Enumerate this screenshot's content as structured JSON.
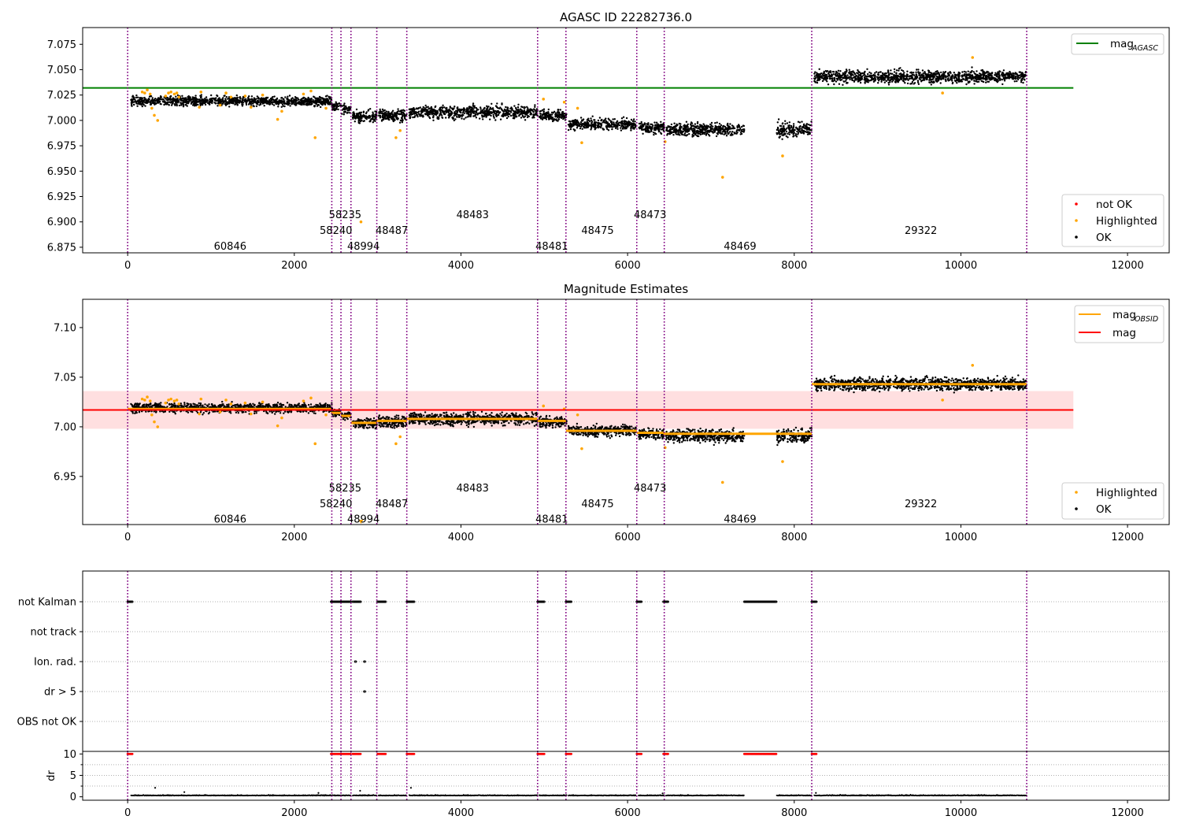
{
  "chart_data": [
    {
      "type": "scatter",
      "title": "AGASC ID 22282736.0",
      "xlim": [
        -540,
        12500
      ],
      "ylim": [
        6.8695,
        7.0915
      ],
      "x_ticks": [
        0,
        2000,
        4000,
        6000,
        8000,
        10000,
        12000
      ],
      "x_tick_labels": [
        "0",
        "2000",
        "4000",
        "6000",
        "8000",
        "10000",
        "12000"
      ],
      "y_ticks": [
        6.875,
        6.9,
        6.925,
        6.95,
        6.975,
        7.0,
        7.025,
        7.05,
        7.075
      ],
      "y_tick_labels": [
        "6.875",
        "6.900",
        "6.925",
        "6.950",
        "6.975",
        "7.000",
        "7.025",
        "7.050",
        "7.075"
      ],
      "reference_lines": [
        {
          "name": "mag_AGASC",
          "value": 7.032,
          "x_range": [
            -540,
            11350
          ],
          "color": "#008000"
        }
      ],
      "legends": [
        {
          "position": "upper right",
          "entries": [
            {
              "label": "mag",
              "subscript": "AGASC",
              "marker": "line",
              "color": "#008000"
            }
          ]
        },
        {
          "position": "lower right",
          "entries": [
            {
              "label": "not OK",
              "marker": "dot",
              "color": "#ff0000"
            },
            {
              "label": "Highlighted",
              "marker": "dot",
              "color": "#ffa500"
            },
            {
              "label": "OK",
              "marker": "dot",
              "color": "#000000"
            }
          ]
        }
      ],
      "obsid_labels": [
        {
          "text": "60846",
          "x": 1230,
          "y": 6.8765
        },
        {
          "text": "58235",
          "x": 2610,
          "y": 6.9075
        },
        {
          "text": "58240",
          "x": 2500,
          "y": 6.892
        },
        {
          "text": "48994",
          "x": 2830,
          "y": 6.8765
        },
        {
          "text": "48487",
          "x": 3170,
          "y": 6.892
        },
        {
          "text": "48483",
          "x": 4140,
          "y": 6.9075
        },
        {
          "text": "48481",
          "x": 5090,
          "y": 6.8765
        },
        {
          "text": "48475",
          "x": 5640,
          "y": 6.892
        },
        {
          "text": "48473",
          "x": 6270,
          "y": 6.9075
        },
        {
          "text": "48469",
          "x": 7350,
          "y": 6.8765
        },
        {
          "text": "29322",
          "x": 9520,
          "y": 6.892
        }
      ],
      "series": [
        {
          "name": "OK",
          "color": "#000000",
          "segments": [
            {
              "x_range": [
                40,
                2450
              ],
              "mean": 7.019,
              "spread": 0.006
            },
            {
              "x_range": [
                2450,
                2560
              ],
              "mean": 7.014,
              "spread": 0.005
            },
            {
              "x_range": [
                2570,
                2680
              ],
              "mean": 7.011,
              "spread": 0.005
            },
            {
              "x_range": [
                2700,
                2990
              ],
              "mean": 7.004,
              "spread": 0.007
            },
            {
              "x_range": [
                3010,
                3350
              ],
              "mean": 7.005,
              "spread": 0.008
            },
            {
              "x_range": [
                3380,
                4920
              ],
              "mean": 7.008,
              "spread": 0.008
            },
            {
              "x_range": [
                4940,
                5270
              ],
              "mean": 7.005,
              "spread": 0.007
            },
            {
              "x_range": [
                5290,
                6100
              ],
              "mean": 6.996,
              "spread": 0.007
            },
            {
              "x_range": [
                6130,
                6440
              ],
              "mean": 6.993,
              "spread": 0.007
            },
            {
              "x_range": [
                6460,
                7400
              ],
              "mean": 6.991,
              "spread": 0.008
            },
            {
              "x_range": [
                7790,
                8210
              ],
              "mean": 6.991,
              "spread": 0.009
            },
            {
              "x_range": [
                8240,
                10790
              ],
              "mean": 7.043,
              "spread": 0.008
            }
          ]
        },
        {
          "name": "Highlighted",
          "color": "#ffa500",
          "points": [
            [
              175,
              7.028
            ],
            [
              205,
              7.027
            ],
            [
              235,
              7.03
            ],
            [
              270,
              7.026
            ],
            [
              290,
              7.012
            ],
            [
              320,
              7.005
            ],
            [
              360,
              7.0
            ],
            [
              455,
              7.024
            ],
            [
              490,
              7.027
            ],
            [
              520,
              7.028
            ],
            [
              560,
              7.026
            ],
            [
              590,
              7.027
            ],
            [
              615,
              7.023
            ],
            [
              860,
              7.013
            ],
            [
              880,
              7.028
            ],
            [
              1110,
              7.015
            ],
            [
              1180,
              7.027
            ],
            [
              1240,
              7.023
            ],
            [
              1410,
              7.024
            ],
            [
              1480,
              7.013
            ],
            [
              1620,
              7.025
            ],
            [
              1800,
              7.001
            ],
            [
              1850,
              7.009
            ],
            [
              2110,
              7.026
            ],
            [
              2200,
              7.029
            ],
            [
              2250,
              6.983
            ],
            [
              2380,
              7.012
            ],
            [
              2800,
              6.9
            ],
            [
              3220,
              6.983
            ],
            [
              3270,
              6.99
            ],
            [
              4990,
              7.021
            ],
            [
              5240,
              7.018
            ],
            [
              5400,
              7.012
            ],
            [
              5450,
              6.978
            ],
            [
              6450,
              6.979
            ],
            [
              7140,
              6.944
            ],
            [
              7860,
              6.965
            ],
            [
              9780,
              7.027
            ],
            [
              10140,
              7.062
            ]
          ]
        }
      ]
    },
    {
      "type": "scatter",
      "title": "Magnitude Estimates",
      "xlim": [
        -540,
        12500
      ],
      "ylim": [
        6.9015,
        7.1285
      ],
      "x_ticks": [
        0,
        2000,
        4000,
        6000,
        8000,
        10000,
        12000
      ],
      "x_tick_labels": [
        "0",
        "2000",
        "4000",
        "6000",
        "8000",
        "10000",
        "12000"
      ],
      "y_ticks": [
        6.95,
        7.0,
        7.05,
        7.1
      ],
      "y_tick_labels": [
        "6.95",
        "7.00",
        "7.05",
        "7.10"
      ],
      "reference_lines": [
        {
          "name": "mag",
          "value": 7.017,
          "x_range": [
            -540,
            11350
          ],
          "color": "#ff0000"
        }
      ],
      "band": {
        "low": 6.998,
        "high": 7.036,
        "color": "#ffdfe0"
      },
      "obsid_mag": [
        {
          "x_range": [
            0,
            2440
          ],
          "value": 7.018
        },
        {
          "x_range": [
            2440,
            2560
          ],
          "value": 7.014
        },
        {
          "x_range": [
            2560,
            2680
          ],
          "value": 7.011
        },
        {
          "x_range": [
            2680,
            2990
          ],
          "value": 7.004
        },
        {
          "x_range": [
            2990,
            3350
          ],
          "value": 7.006
        },
        {
          "x_range": [
            3350,
            4920
          ],
          "value": 7.008
        },
        {
          "x_range": [
            4920,
            5260
          ],
          "value": 7.006
        },
        {
          "x_range": [
            5260,
            6110
          ],
          "value": 6.996
        },
        {
          "x_range": [
            6110,
            6430
          ],
          "value": 6.994
        },
        {
          "x_range": [
            6430,
            8210
          ],
          "value": 6.993
        },
        {
          "x_range": [
            8210,
            10790
          ],
          "value": 7.043
        }
      ],
      "legends": [
        {
          "position": "upper right",
          "entries": [
            {
              "label": "mag",
              "subscript": "OBSID",
              "marker": "line",
              "color": "#ffa500"
            },
            {
              "label": "mag",
              "marker": "line",
              "color": "#ff0000"
            }
          ]
        },
        {
          "position": "lower right",
          "entries": [
            {
              "label": "Highlighted",
              "marker": "dot",
              "color": "#ffa500"
            },
            {
              "label": "OK",
              "marker": "dot",
              "color": "#000000"
            }
          ]
        }
      ],
      "obsid_labels": [
        {
          "text": "60846",
          "x": 1230,
          "y": 6.9075
        },
        {
          "text": "58235",
          "x": 2610,
          "y": 6.939
        },
        {
          "text": "58240",
          "x": 2500,
          "y": 6.923
        },
        {
          "text": "48994",
          "x": 2830,
          "y": 6.9075
        },
        {
          "text": "48487",
          "x": 3170,
          "y": 6.923
        },
        {
          "text": "48483",
          "x": 4140,
          "y": 6.939
        },
        {
          "text": "48481",
          "x": 5090,
          "y": 6.9075
        },
        {
          "text": "48475",
          "x": 5640,
          "y": 6.923
        },
        {
          "text": "48473",
          "x": 6270,
          "y": 6.939
        },
        {
          "text": "48469",
          "x": 7350,
          "y": 6.9075
        },
        {
          "text": "29322",
          "x": 9520,
          "y": 6.923
        }
      ]
    },
    {
      "type": "scatter",
      "title": "",
      "xlim": [
        -540,
        12500
      ],
      "x_ticks": [
        0,
        2000,
        4000,
        6000,
        8000,
        10000,
        12000
      ],
      "x_tick_labels": [
        "0",
        "2000",
        "4000",
        "6000",
        "8000",
        "10000",
        "12000"
      ],
      "flag_categories": [
        "not Kalman",
        "not track",
        "Ion. rad.",
        "dr > 5",
        "OBS not OK"
      ],
      "flagged": {
        "not Kalman": [
          [
            0,
            60
          ],
          [
            2440,
            2560
          ],
          [
            2570,
            2680
          ],
          [
            2700,
            2800
          ],
          [
            3000,
            3100
          ],
          [
            3350,
            3440
          ],
          [
            4920,
            5000
          ],
          [
            5260,
            5330
          ],
          [
            6110,
            6170
          ],
          [
            6430,
            6490
          ],
          [
            7400,
            7790
          ],
          [
            8210,
            8270
          ]
        ],
        "Ion. rad.": [
          [
            2730,
            2740
          ],
          [
            2840,
            2850
          ]
        ],
        "dr > 5": [
          [
            2840,
            2850
          ]
        ]
      },
      "dr_panel": {
        "ylabel": "dr",
        "ylim": [
          -0.8,
          10.6
        ],
        "y_ticks": [
          0,
          5,
          10
        ],
        "y_tick_labels": [
          "0",
          "5",
          "10"
        ],
        "clipped_at_10": [
          [
            0,
            60
          ],
          [
            2440,
            2560
          ],
          [
            2570,
            2680
          ],
          [
            2700,
            2800
          ],
          [
            3000,
            3100
          ],
          [
            3350,
            3440
          ],
          [
            4920,
            5000
          ],
          [
            5260,
            5330
          ],
          [
            6110,
            6170
          ],
          [
            6430,
            6490
          ],
          [
            7400,
            7790
          ],
          [
            8210,
            8270
          ]
        ],
        "typical_dr": 0.25
      }
    }
  ],
  "boundaries": [
    0,
    2450,
    2560,
    2680,
    2990,
    3350,
    4920,
    5260,
    6110,
    6440,
    8210,
    10790
  ],
  "colors": {
    "ok": "#000000",
    "highlighted": "#ffa500",
    "not_ok": "#ff0000",
    "boundary": "#800080",
    "agasc": "#008000",
    "mag": "#ff0000",
    "obsid": "#ffa500",
    "band": "#ffdfe0"
  }
}
